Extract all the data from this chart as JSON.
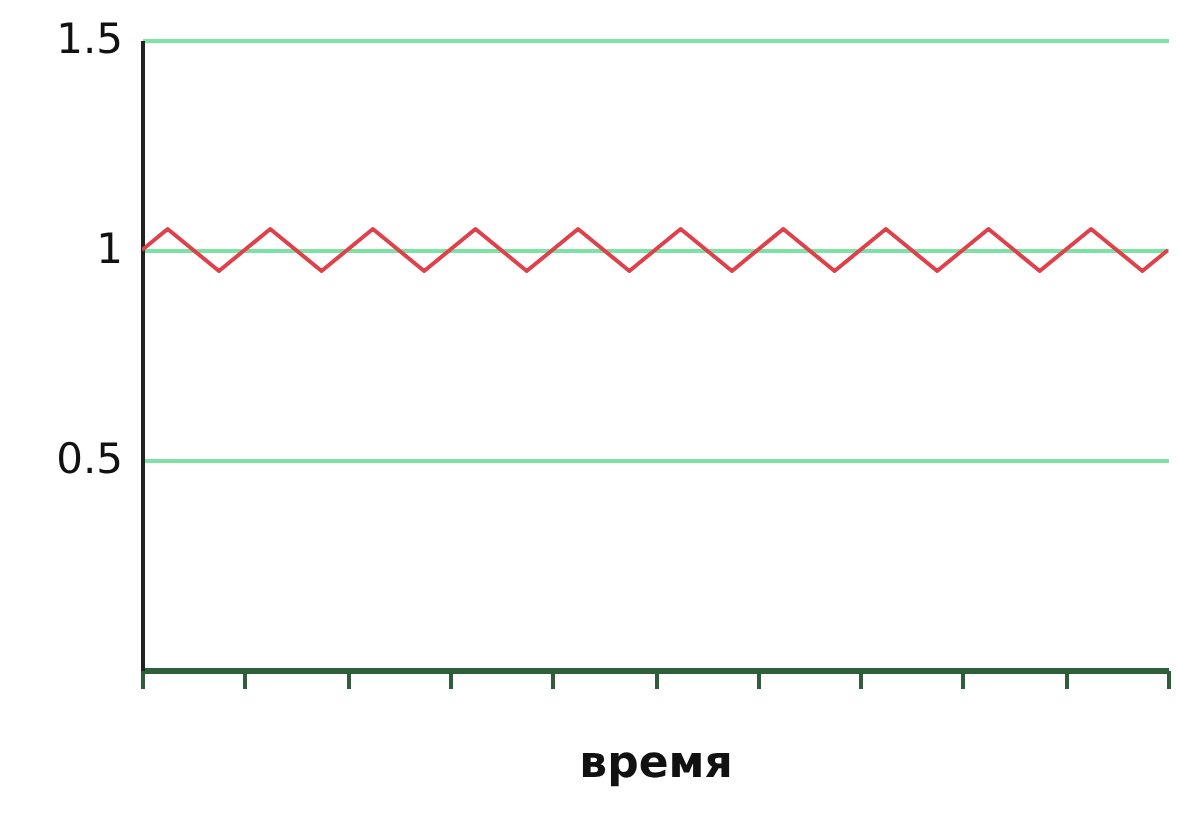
{
  "chart_data": {
    "type": "line",
    "xlabel": "время",
    "categories": [
      null,
      null,
      null,
      null,
      null,
      null,
      null,
      null,
      null,
      null,
      null,
      null,
      null,
      null,
      null,
      null,
      null,
      null,
      null,
      null,
      null,
      null,
      null,
      null,
      null,
      null,
      null,
      null,
      null,
      null,
      null,
      null,
      null,
      null,
      null,
      null,
      null,
      null,
      null,
      null,
      null
    ],
    "ylim": [
      0,
      1.5
    ],
    "yticks": [
      0.5,
      1,
      1.5
    ],
    "grid": "y",
    "tick_labels": "y",
    "marker": "none",
    "line_style": "solid",
    "series": [
      {
        "color": "#e0404a",
        "values": [
          1,
          1.05,
          1,
          0.95,
          1,
          1.05,
          1,
          0.95,
          1,
          1.05,
          1,
          0.95,
          1,
          1.05,
          1,
          0.95,
          1,
          1.05,
          1,
          0.95,
          1,
          1.05,
          1,
          0.95,
          1,
          1.05,
          1,
          0.95,
          1,
          1.05,
          1,
          0.95,
          1,
          1.05,
          1,
          0.95,
          1,
          1.05,
          1,
          0.95,
          1
        ]
      }
    ]
  }
}
